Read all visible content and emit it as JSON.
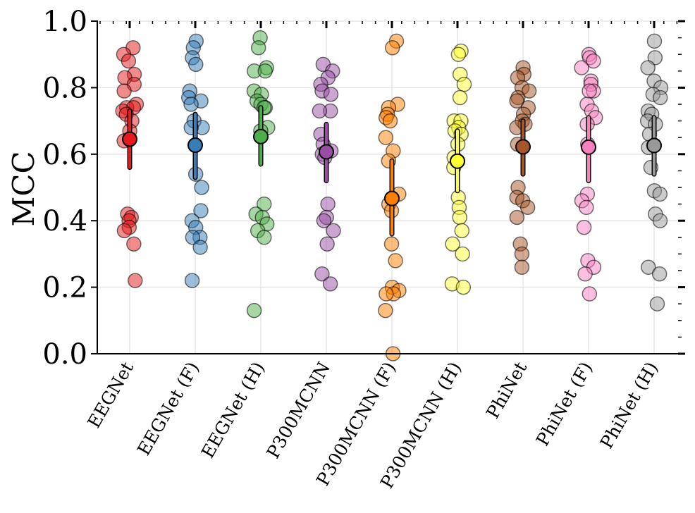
{
  "chart_data": {
    "type": "scatter",
    "ylabel": "MCC",
    "ylim": [
      0.0,
      1.0
    ],
    "yticks": [
      0.0,
      0.2,
      0.4,
      0.6,
      0.8,
      1.0
    ],
    "ytick_labels": [
      "0.0",
      "0.2",
      "0.4",
      "0.6",
      "0.8",
      "1.0"
    ],
    "grid": true,
    "categories": [
      "EEGNet",
      "EEGNet (F)",
      "EEGNet (H)",
      "P300MCNN",
      "P300MCNN (F)",
      "P300MCNN (H)",
      "PhiNet",
      "PhiNet (F)",
      "PhiNet (H)"
    ],
    "series": [
      {
        "name": "EEGNet",
        "color": "#e41a1c",
        "points": [
          0.92,
          0.9,
          0.88,
          0.84,
          0.83,
          0.81,
          0.79,
          0.75,
          0.74,
          0.74,
          0.73,
          0.72,
          0.7,
          0.67,
          0.64,
          0.42,
          0.41,
          0.4,
          0.38,
          0.37,
          0.33,
          0.22
        ],
        "mean": 0.645,
        "err_low": 0.56,
        "err_high": 0.73
      },
      {
        "name": "EEGNet (F)",
        "color": "#377eb8",
        "points": [
          0.94,
          0.92,
          0.89,
          0.87,
          0.79,
          0.77,
          0.76,
          0.75,
          0.7,
          0.68,
          0.68,
          0.54,
          0.5,
          0.43,
          0.4,
          0.38,
          0.35,
          0.35,
          0.32,
          0.22
        ],
        "mean": 0.627,
        "err_low": 0.53,
        "err_high": 0.72
      },
      {
        "name": "EEGNet (H)",
        "color": "#4daf4a",
        "points": [
          0.95,
          0.92,
          0.86,
          0.85,
          0.85,
          0.79,
          0.78,
          0.76,
          0.75,
          0.74,
          0.74,
          0.68,
          0.67,
          0.45,
          0.42,
          0.41,
          0.39,
          0.37,
          0.35,
          0.13
        ],
        "mean": 0.653,
        "err_low": 0.57,
        "err_high": 0.74
      },
      {
        "name": "P300MCNN",
        "color": "#984ea3",
        "points": [
          0.87,
          0.85,
          0.83,
          0.81,
          0.79,
          0.78,
          0.73,
          0.73,
          0.66,
          0.63,
          0.61,
          0.6,
          0.59,
          0.45,
          0.41,
          0.4,
          0.37,
          0.33,
          0.24,
          0.21
        ],
        "mean": 0.607,
        "err_low": 0.52,
        "err_high": 0.69
      },
      {
        "name": "P300MCNN (F)",
        "color": "#ff7f00",
        "points": [
          0.94,
          0.92,
          0.75,
          0.74,
          0.72,
          0.71,
          0.7,
          0.65,
          0.61,
          0.58,
          0.48,
          0.45,
          0.43,
          0.33,
          0.28,
          0.2,
          0.19,
          0.18,
          0.18,
          0.13,
          0.0
        ],
        "mean": 0.467,
        "err_low": 0.36,
        "err_high": 0.58
      },
      {
        "name": "P300MCNN (H)",
        "color": "#ffff33",
        "points": [
          0.91,
          0.9,
          0.84,
          0.81,
          0.77,
          0.7,
          0.7,
          0.68,
          0.67,
          0.66,
          0.63,
          0.59,
          0.56,
          0.47,
          0.44,
          0.41,
          0.37,
          0.33,
          0.3,
          0.21,
          0.2
        ],
        "mean": 0.579,
        "err_low": 0.49,
        "err_high": 0.67
      },
      {
        "name": "PhiNet",
        "color": "#a65628",
        "points": [
          0.86,
          0.84,
          0.83,
          0.8,
          0.79,
          0.77,
          0.76,
          0.74,
          0.72,
          0.7,
          0.69,
          0.68,
          0.63,
          0.5,
          0.47,
          0.46,
          0.44,
          0.41,
          0.33,
          0.3,
          0.26
        ],
        "mean": 0.622,
        "err_low": 0.54,
        "err_high": 0.7
      },
      {
        "name": "PhiNet (F)",
        "color": "#f781bf",
        "points": [
          0.9,
          0.89,
          0.88,
          0.86,
          0.82,
          0.81,
          0.79,
          0.79,
          0.75,
          0.73,
          0.71,
          0.69,
          0.63,
          0.48,
          0.46,
          0.44,
          0.38,
          0.28,
          0.26,
          0.24,
          0.18
        ],
        "mean": 0.621,
        "err_low": 0.52,
        "err_high": 0.71
      },
      {
        "name": "PhiNet (H)",
        "color": "#999999",
        "points": [
          0.94,
          0.89,
          0.86,
          0.82,
          0.8,
          0.78,
          0.77,
          0.73,
          0.72,
          0.7,
          0.69,
          0.66,
          0.62,
          0.56,
          0.49,
          0.48,
          0.42,
          0.4,
          0.26,
          0.24,
          0.15
        ],
        "mean": 0.626,
        "err_low": 0.54,
        "err_high": 0.71
      }
    ]
  }
}
